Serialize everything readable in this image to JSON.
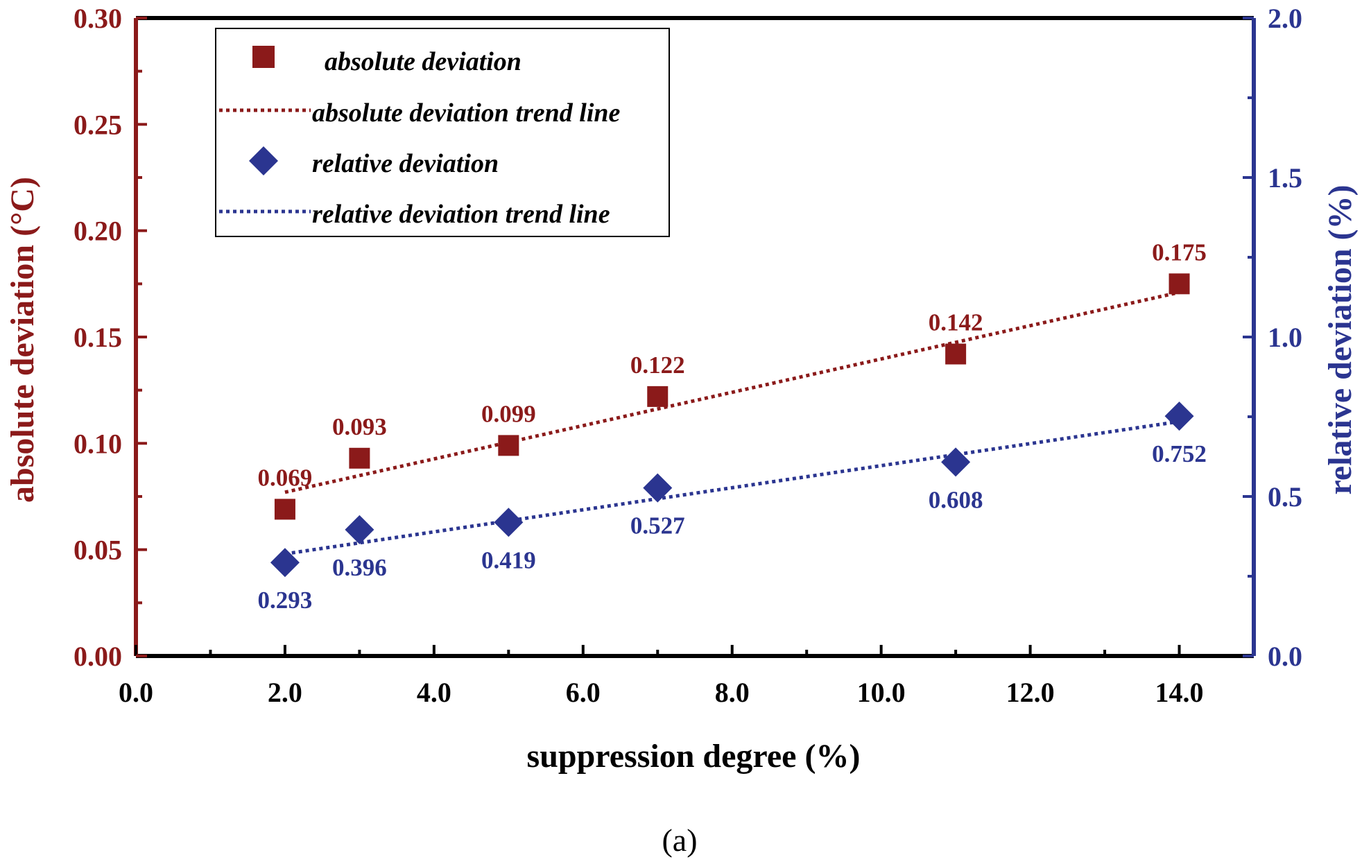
{
  "colors": {
    "absolute": "#8b1a1a",
    "relative": "#2b3590",
    "axis": "#000000"
  },
  "caption": "(a)",
  "chart_data": {
    "type": "scatter",
    "xlabel": "suppression degree (%)",
    "ylabel_left": "absolute deviation (°C)",
    "ylabel_right": "relative deviation (%)",
    "xlim": [
      0,
      15
    ],
    "ylim_left": [
      0,
      0.3
    ],
    "ylim_right": [
      0,
      2.0
    ],
    "x_ticks": [
      "0.0",
      "2.0",
      "4.0",
      "6.0",
      "8.0",
      "10.0",
      "12.0",
      "14.0"
    ],
    "x_tick_values": [
      0,
      2,
      4,
      6,
      8,
      10,
      12,
      14
    ],
    "y_left_ticks": [
      "0.00",
      "0.05",
      "0.10",
      "0.15",
      "0.20",
      "0.25",
      "0.30"
    ],
    "y_left_tick_values": [
      0,
      0.05,
      0.1,
      0.15,
      0.2,
      0.25,
      0.3
    ],
    "y_right_ticks": [
      "0.0",
      "0.5",
      "1.0",
      "1.5",
      "2.0"
    ],
    "y_right_tick_values": [
      0,
      0.5,
      1.0,
      1.5,
      2.0
    ],
    "x": [
      2,
      3,
      5,
      7,
      11,
      14
    ],
    "series": [
      {
        "name": "absolute deviation",
        "axis": "left",
        "marker": "square",
        "values": [
          0.069,
          0.093,
          0.099,
          0.122,
          0.142,
          0.175
        ],
        "labels": [
          "0.069",
          "0.093",
          "0.099",
          "0.122",
          "0.142",
          "0.175"
        ]
      },
      {
        "name": "relative deviation",
        "axis": "right",
        "marker": "diamond",
        "values": [
          0.293,
          0.396,
          0.419,
          0.527,
          0.608,
          0.752
        ],
        "labels": [
          "0.293",
          "0.396",
          "0.419",
          "0.527",
          "0.608",
          "0.752"
        ]
      }
    ],
    "trend_lines": [
      {
        "name": "absolute deviation trend line",
        "axis": "left",
        "x_range": [
          2,
          14
        ],
        "y_range": [
          0.077,
          0.171
        ]
      },
      {
        "name": "relative deviation trend line",
        "axis": "right",
        "x_range": [
          2,
          14
        ],
        "y_range": [
          0.32,
          0.735
        ]
      }
    ],
    "legend": {
      "position": "top-left",
      "entries": [
        "absolute deviation",
        "absolute deviation trend line",
        "relative deviation",
        "relative deviation trend line"
      ]
    }
  }
}
